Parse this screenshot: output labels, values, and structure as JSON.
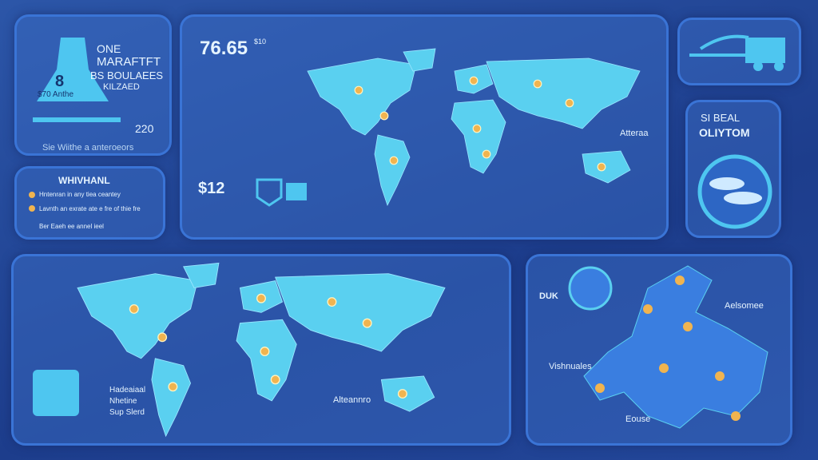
{
  "top_left": {
    "heading": [
      "ONE",
      "MARAFTFT",
      "BS BOULAEES",
      "KILZAED"
    ],
    "rocket_badge": "8",
    "rocket_label": "$70 Anthe",
    "value": "220",
    "caption": "Sie Wiithe a anteroeors"
  },
  "list_panel": {
    "title": "WHIVHANL",
    "items": [
      "Hntenran in any tiea ceantey",
      "Lavnth an exrate ate e fre of thie fre",
      "Ber Eaeh ee annel ieel"
    ]
  },
  "main_map": {
    "stat": "76.65",
    "stat_tag": "$10",
    "price": "$12",
    "callout": "Atteraa"
  },
  "side_panel": {
    "title": [
      "SI BEAL",
      "OLIYTOM"
    ]
  },
  "bottom_map": {
    "badge_text": [
      "Hadeaiaal",
      "Nhetine",
      "Sup Slerd"
    ],
    "callout": "Alteannro"
  },
  "europe_map": {
    "labels": [
      "DUK",
      "Aelsomee",
      "Vishnuales",
      "Eouse"
    ]
  }
}
